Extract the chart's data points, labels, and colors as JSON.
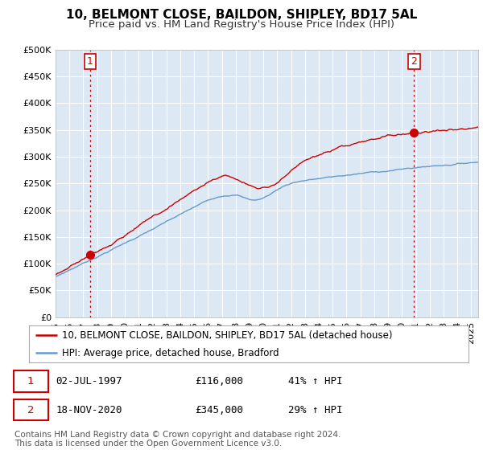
{
  "title": "10, BELMONT CLOSE, BAILDON, SHIPLEY, BD17 5AL",
  "subtitle": "Price paid vs. HM Land Registry's House Price Index (HPI)",
  "ytick_values": [
    0,
    50000,
    100000,
    150000,
    200000,
    250000,
    300000,
    350000,
    400000,
    450000,
    500000
  ],
  "ylim": [
    0,
    500000
  ],
  "xlim_start": 1995.0,
  "xlim_end": 2025.5,
  "red_line_color": "#cc0000",
  "blue_line_color": "#6699cc",
  "point1_x": 1997.5,
  "point1_y": 116000,
  "point2_x": 2020.88,
  "point2_y": 345000,
  "legend_red_label": "10, BELMONT CLOSE, BAILDON, SHIPLEY, BD17 5AL (detached house)",
  "legend_blue_label": "HPI: Average price, detached house, Bradford",
  "table_rows": [
    {
      "num": "1",
      "date": "02-JUL-1997",
      "price": "£116,000",
      "change": "41% ↑ HPI"
    },
    {
      "num": "2",
      "date": "18-NOV-2020",
      "price": "£345,000",
      "change": "29% ↑ HPI"
    }
  ],
  "footer": "Contains HM Land Registry data © Crown copyright and database right 2024.\nThis data is licensed under the Open Government Licence v3.0.",
  "background_color": "#ffffff",
  "plot_bg_color": "#dce9f5",
  "grid_color": "#ffffff",
  "vline_color": "#cc0000",
  "vline_style": ":",
  "title_fontsize": 11,
  "subtitle_fontsize": 9.5,
  "tick_fontsize": 8,
  "legend_fontsize": 8.5,
  "footer_fontsize": 7.5,
  "num_label_fontsize": 9
}
